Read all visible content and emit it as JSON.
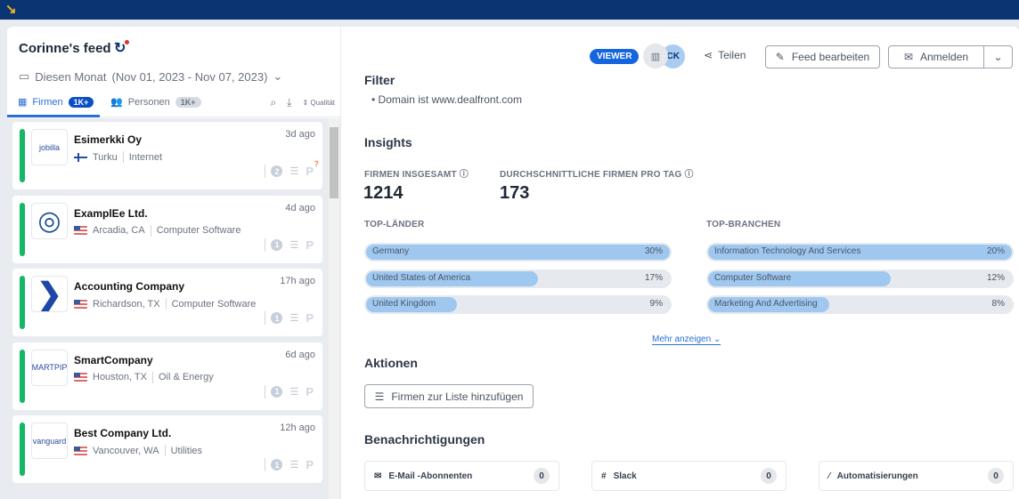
{
  "feed": {
    "title": "Corinne's feed",
    "period": "Diesen Monat",
    "range": "(Nov 01, 2023 - Nov 07, 2023)",
    "tabs": [
      {
        "label": "Firmen",
        "count": "1K+"
      },
      {
        "label": "Personen",
        "count": "1K+"
      }
    ],
    "quality_label": "Qualität",
    "companies": [
      {
        "name": "Esimerkki Oy",
        "city": "Turku",
        "industry": "Internet",
        "ago": "3d ago",
        "count": "2",
        "flag": "fi",
        "logo": "jobilla"
      },
      {
        "name": "ExamplEe Ltd.",
        "city": "Arcadia, CA",
        "industry": "Computer Software",
        "ago": "4d ago",
        "count": "1",
        "flag": "us",
        "logo": ""
      },
      {
        "name": "Accounting Company",
        "city": "Richardson, TX",
        "industry": "Computer Software",
        "ago": "17h ago",
        "count": "1",
        "flag": "us",
        "logo": ""
      },
      {
        "name": "SmartCompany",
        "city": "Houston, TX",
        "industry": "Oil & Energy",
        "ago": "6d ago",
        "count": "1",
        "flag": "us",
        "logo": "SMARTPIPE"
      },
      {
        "name": "Best Company Ltd.",
        "city": "Vancouver, WA",
        "industry": "Utilities",
        "ago": "12h ago",
        "count": "1",
        "flag": "us",
        "logo": "vanguard"
      }
    ]
  },
  "header": {
    "role": "VIEWER",
    "avatar": "CK",
    "share": "Teilen",
    "edit": "Feed bearbeiten",
    "subscribe": "Anmelden"
  },
  "filter": {
    "title": "Filter",
    "items": [
      "Domain ist www.dealfront.com"
    ]
  },
  "insights": {
    "title": "Insights",
    "total_label": "FIRMEN INSGESAMT",
    "total": "1214",
    "avg_label": "DURCHSCHNITTLICHE FIRMEN PRO TAG",
    "avg": "173",
    "countries_label": "TOP-LÄNDER",
    "countries": [
      {
        "name": "Germany",
        "pct": 30,
        "label": "30%"
      },
      {
        "name": "United States of America",
        "pct": 17,
        "label": "17%"
      },
      {
        "name": "United Kingdom",
        "pct": 9,
        "label": "9%"
      }
    ],
    "industries_label": "TOP-BRANCHEN",
    "industries": [
      {
        "name": "Information Technology And Services",
        "pct": 20,
        "label": "20%"
      },
      {
        "name": "Computer Software",
        "pct": 12,
        "label": "12%"
      },
      {
        "name": "Marketing And Advertising",
        "pct": 8,
        "label": "8%"
      }
    ],
    "more": "Mehr anzeigen"
  },
  "actions": {
    "title": "Aktionen",
    "add_to_list": "Firmen zur Liste hinzufügen"
  },
  "notifications": {
    "title": "Benachrichtigungen",
    "items": [
      {
        "label": "E-Mail -Abonnenten",
        "count": "0"
      },
      {
        "label": "Slack",
        "count": "0"
      },
      {
        "label": "Automatisierungen",
        "count": "0"
      }
    ]
  },
  "colors": {
    "accent": "#1565e0",
    "topbar": "#0b3472",
    "status": "#12b865",
    "bar": "#9fc8f0"
  }
}
